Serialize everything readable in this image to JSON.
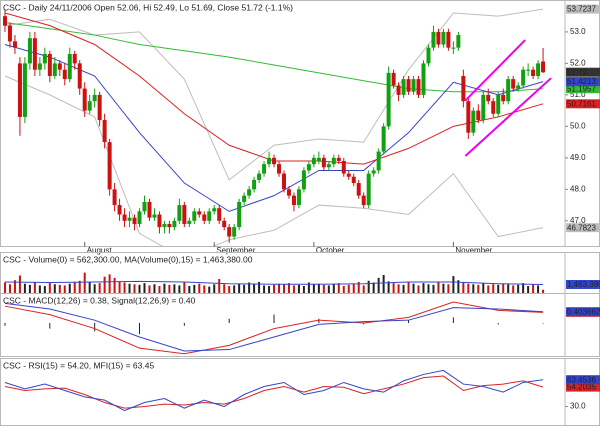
{
  "chart_data": [
    {
      "type": "candlestick",
      "title": "CSC - Daily 24/11/2006 Open 52.06, Hi 52.49, Lo 51.69, Close 51.72 (-1.1%)",
      "up_color": "#11a011",
      "down_color": "#cc1111",
      "ohlc": [
        [
          53.5,
          53.7,
          53.0,
          53.2
        ],
        [
          53.2,
          53.3,
          52.5,
          52.7
        ],
        [
          52.7,
          52.9,
          52.3,
          52.5
        ],
        [
          52.0,
          52.2,
          49.7,
          50.3
        ],
        [
          50.3,
          52.2,
          50.1,
          52.0
        ],
        [
          52.0,
          53.0,
          51.8,
          52.8
        ],
        [
          52.8,
          53.0,
          51.6,
          51.8
        ],
        [
          51.8,
          52.2,
          51.6,
          52.0
        ],
        [
          52.0,
          52.5,
          51.8,
          52.3
        ],
        [
          52.3,
          52.4,
          51.4,
          51.6
        ],
        [
          51.6,
          52.2,
          51.5,
          52.0
        ],
        [
          52.0,
          52.1,
          51.6,
          51.8
        ],
        [
          51.8,
          52.0,
          51.3,
          51.5
        ],
        [
          51.5,
          52.5,
          51.4,
          52.3
        ],
        [
          52.3,
          52.4,
          51.8,
          52.0
        ],
        [
          52.0,
          52.1,
          51.0,
          51.2
        ],
        [
          51.2,
          51.4,
          50.3,
          50.5
        ],
        [
          50.5,
          51.0,
          50.4,
          50.8
        ],
        [
          50.8,
          51.2,
          50.6,
          51.0
        ],
        [
          51.0,
          51.1,
          50.0,
          50.2
        ],
        [
          50.2,
          50.4,
          49.3,
          49.5
        ],
        [
          49.5,
          49.6,
          47.8,
          48.0
        ],
        [
          48.0,
          48.2,
          47.3,
          47.5
        ],
        [
          47.5,
          47.7,
          47.0,
          47.2
        ],
        [
          47.2,
          47.4,
          46.8,
          47.0
        ],
        [
          47.0,
          47.3,
          46.8,
          47.1
        ],
        [
          47.1,
          47.2,
          46.7,
          46.9
        ],
        [
          46.9,
          47.4,
          46.8,
          47.3
        ],
        [
          47.3,
          47.8,
          47.2,
          47.6
        ],
        [
          47.6,
          47.7,
          47.0,
          47.1
        ],
        [
          47.1,
          47.4,
          47.0,
          47.2
        ],
        [
          47.2,
          47.3,
          46.6,
          46.8
        ],
        [
          46.8,
          47.0,
          46.6,
          46.9
        ],
        [
          46.9,
          47.0,
          46.6,
          46.8
        ],
        [
          46.8,
          47.1,
          46.7,
          47.0
        ],
        [
          47.0,
          47.7,
          46.9,
          47.5
        ],
        [
          47.5,
          47.6,
          46.8,
          46.9
        ],
        [
          46.9,
          47.1,
          46.8,
          47.0
        ],
        [
          47.0,
          47.4,
          46.9,
          47.3
        ],
        [
          47.3,
          47.4,
          47.1,
          47.2
        ],
        [
          47.2,
          47.3,
          46.9,
          47.0
        ],
        [
          47.0,
          47.4,
          46.9,
          47.3
        ],
        [
          47.3,
          47.5,
          47.2,
          47.4
        ],
        [
          47.4,
          47.5,
          46.9,
          47.0
        ],
        [
          47.0,
          47.1,
          46.7,
          46.8
        ],
        [
          46.8,
          46.9,
          46.3,
          46.5
        ],
        [
          46.5,
          46.9,
          46.4,
          46.8
        ],
        [
          46.8,
          47.7,
          46.7,
          47.6
        ],
        [
          47.6,
          47.9,
          47.5,
          47.8
        ],
        [
          47.8,
          48.1,
          47.7,
          48.0
        ],
        [
          48.0,
          48.4,
          47.9,
          48.3
        ],
        [
          48.3,
          48.6,
          48.2,
          48.5
        ],
        [
          48.5,
          48.9,
          48.4,
          48.8
        ],
        [
          48.8,
          49.2,
          48.7,
          49.0
        ],
        [
          49.0,
          49.1,
          48.7,
          48.8
        ],
        [
          48.8,
          48.9,
          48.4,
          48.5
        ],
        [
          48.5,
          48.6,
          47.9,
          48.0
        ],
        [
          48.0,
          48.1,
          47.7,
          47.8
        ],
        [
          47.8,
          47.9,
          47.3,
          47.5
        ],
        [
          47.5,
          48.1,
          47.4,
          48.0
        ],
        [
          48.0,
          48.7,
          47.9,
          48.6
        ],
        [
          48.6,
          48.9,
          48.5,
          48.8
        ],
        [
          48.8,
          49.1,
          48.7,
          49.0
        ],
        [
          48.9,
          49.2,
          48.8,
          49.0
        ],
        [
          49.0,
          49.1,
          48.6,
          48.7
        ],
        [
          48.7,
          48.9,
          48.6,
          48.8
        ],
        [
          48.8,
          49.1,
          48.7,
          49.0
        ],
        [
          49.0,
          49.1,
          48.8,
          48.9
        ],
        [
          48.9,
          49.0,
          48.4,
          48.5
        ],
        [
          48.5,
          48.6,
          48.3,
          48.4
        ],
        [
          48.4,
          48.5,
          48.1,
          48.2
        ],
        [
          48.2,
          48.3,
          47.7,
          47.8
        ],
        [
          47.8,
          47.9,
          47.4,
          47.5
        ],
        [
          47.5,
          48.6,
          47.4,
          48.5
        ],
        [
          48.5,
          48.7,
          48.4,
          48.6
        ],
        [
          48.6,
          49.3,
          48.5,
          49.2
        ],
        [
          49.2,
          50.1,
          49.1,
          50.0
        ],
        [
          50.0,
          51.9,
          49.9,
          51.7
        ],
        [
          51.7,
          51.8,
          51.2,
          51.3
        ],
        [
          51.3,
          51.4,
          50.8,
          51.0
        ],
        [
          51.0,
          51.6,
          50.9,
          51.5
        ],
        [
          51.5,
          51.6,
          51.0,
          51.1
        ],
        [
          51.1,
          51.6,
          51.0,
          51.5
        ],
        [
          51.5,
          51.6,
          50.9,
          51.0
        ],
        [
          51.0,
          52.1,
          50.9,
          52.0
        ],
        [
          52.0,
          52.6,
          51.9,
          52.5
        ],
        [
          52.5,
          53.2,
          52.4,
          53.0
        ],
        [
          53.0,
          53.1,
          52.5,
          52.6
        ],
        [
          52.6,
          53.1,
          52.5,
          53.0
        ],
        [
          53.0,
          53.1,
          52.4,
          52.5
        ],
        [
          52.5,
          52.7,
          52.3,
          52.5
        ],
        [
          52.5,
          53.0,
          52.4,
          52.9
        ],
        [
          51.6,
          51.8,
          50.6,
          50.8
        ],
        [
          50.8,
          50.9,
          49.6,
          49.8
        ],
        [
          49.8,
          50.6,
          49.7,
          50.5
        ],
        [
          50.5,
          50.7,
          50.1,
          50.2
        ],
        [
          50.2,
          51.1,
          50.1,
          51.0
        ],
        [
          51.0,
          51.2,
          50.7,
          50.8
        ],
        [
          50.8,
          50.9,
          50.3,
          50.4
        ],
        [
          50.4,
          51.1,
          50.3,
          51.0
        ],
        [
          51.0,
          51.2,
          50.7,
          50.8
        ],
        [
          50.8,
          51.6,
          50.7,
          51.5
        ],
        [
          51.5,
          51.6,
          51.1,
          51.2
        ],
        [
          51.2,
          51.4,
          51.1,
          51.3
        ],
        [
          51.3,
          51.9,
          51.2,
          51.8
        ],
        [
          51.8,
          52.0,
          51.6,
          51.8
        ],
        [
          51.8,
          51.9,
          51.5,
          51.6
        ],
        [
          51.6,
          52.1,
          51.5,
          52.0
        ],
        [
          52.06,
          52.49,
          51.69,
          51.72
        ]
      ],
      "last_label": "51.72",
      "xlim": [
        -1,
        112
      ],
      "xticks": [
        {
          "value": 16,
          "label": "August"
        },
        {
          "value": 42,
          "label": "September"
        },
        {
          "value": 62,
          "label": "October"
        },
        {
          "value": 90,
          "label": "November"
        }
      ],
      "ylim": [
        46.2,
        53.95
      ],
      "yticks": [
        {
          "value": 53,
          "label": "53.0"
        },
        {
          "value": 52,
          "label": "52.0"
        },
        {
          "value": 51,
          "label": "51.0"
        },
        {
          "value": 50,
          "label": "50.0"
        },
        {
          "value": 49,
          "label": "49.0"
        },
        {
          "value": 48,
          "label": "48.0"
        },
        {
          "value": 47,
          "label": "47.0"
        }
      ],
      "overlay_x": [
        0,
        9,
        18,
        27,
        36,
        45,
        54,
        63,
        72,
        81,
        90,
        99,
        108
      ],
      "overlays": [
        {
          "color": "#bdbdbd",
          "label_text_color": "#222222",
          "values": [
            53.2,
            53.4,
            52.9,
            53.0,
            51.5,
            48.3,
            49.4,
            49.6,
            49.5,
            51.8,
            53.6,
            53.5,
            53.7237
          ],
          "end_label": "53.7237"
        },
        {
          "color": "#bdbdbd",
          "label_text_color": "#222222",
          "values": [
            51.6,
            51.0,
            50.3,
            46.6,
            45.8,
            46.4,
            46.7,
            47.5,
            47.4,
            47.2,
            48.5,
            46.5,
            46.7823
          ],
          "end_label": "46.7823"
        },
        {
          "color": "#33bb33",
          "label_text_color": "#ffffff",
          "values": [
            53.3,
            53.1,
            52.9,
            52.6,
            52.4,
            52.2,
            51.95,
            51.7,
            51.45,
            51.2,
            51.1,
            51.1,
            51.1957
          ],
          "end_label": "51.1957"
        },
        {
          "color": "#dd2222",
          "label_text_color": "#ffffff",
          "values": [
            53.6,
            53.2,
            52.6,
            51.6,
            50.4,
            49.4,
            48.9,
            48.9,
            48.8,
            49.3,
            50.0,
            50.3,
            50.7161
          ],
          "end_label": "50.7161"
        },
        {
          "color": "#3344cc",
          "label_text_color": "#ffffff",
          "values": [
            52.6,
            52.2,
            51.6,
            49.8,
            48.2,
            47.3,
            47.8,
            48.6,
            48.6,
            49.8,
            51.4,
            51.0,
            51.4213
          ],
          "end_label": "51.4213"
        }
      ],
      "trendlines": [
        {
          "color": "#ee00ee",
          "x": [
            92.4,
            104.4
          ],
          "values": [
            50.82,
            52.74
          ]
        },
        {
          "color": "#ee00ee",
          "x": [
            92.4,
            109.6
          ],
          "values": [
            49.06,
            51.53
          ]
        }
      ]
    },
    {
      "type": "volume",
      "title": "CSC - Volume(0) = 562,300.00, MA(Volume(0),15) = 1,463,380.00",
      "xlim": [
        -1,
        112
      ],
      "ylim": [
        0,
        6700000
      ],
      "values": [
        1800000,
        1500000,
        2200000,
        3000000,
        1600000,
        1400000,
        1900000,
        1300000,
        1200000,
        1700000,
        1500000,
        1400000,
        1300000,
        1600000,
        1900000,
        2100000,
        3500000,
        1800000,
        1500000,
        1700000,
        2800000,
        3200000,
        2600000,
        2000000,
        1800000,
        1600000,
        1500000,
        1400000,
        1700000,
        1300000,
        1500000,
        1200000,
        1600000,
        1400000,
        1500000,
        1300000,
        1800000,
        1200000,
        1400000,
        1600000,
        1300000,
        1100000,
        1500000,
        2400000,
        1500000,
        1200000,
        1300000,
        1600000,
        1400000,
        1800000,
        1500000,
        1900000,
        1300000,
        1200000,
        1400000,
        1600000,
        1500000,
        1700000,
        1300000,
        1400000,
        1200000,
        1800000,
        1500000,
        1600000,
        1400000,
        1300000,
        1500000,
        1700000,
        1200000,
        1400000,
        1600000,
        1900000,
        1300000,
        2100000,
        1800000,
        2600000,
        3100000,
        2000000,
        1700000,
        1500000,
        1400000,
        1800000,
        1600000,
        1300000,
        1700000,
        1500000,
        1400000,
        1900000,
        1600000,
        1500000,
        2900000,
        2200000,
        1800000,
        1600000,
        1500000,
        1400000,
        1700000,
        1300000,
        1500000,
        1400000,
        1600000,
        1500000,
        1300000,
        1400000,
        1700000,
        1200000,
        1500000,
        1300000,
        562300
      ],
      "ma": {
        "color": "#3344cc",
        "x": [
          0,
          9,
          18,
          27,
          36,
          45,
          54,
          63,
          72,
          81,
          90,
          99,
          108
        ],
        "values": [
          1900000,
          1800000,
          1900000,
          2000000,
          1900000,
          1600000,
          1500000,
          1500000,
          1600000,
          1900000,
          1900000,
          1600000,
          1463380
        ],
        "end_label": "1,463,380"
      }
    },
    {
      "type": "line",
      "title": "CSC - MACD(12,26) = 0.38, Signal(12,26,9) = 0.40",
      "xlim": [
        -1,
        112
      ],
      "ylim": [
        -1.18,
        1.0
      ],
      "x": [
        0,
        9,
        18,
        27,
        36,
        45,
        54,
        63,
        72,
        81,
        90,
        99,
        108
      ],
      "series": [
        {
          "color": "#dd2222",
          "values": [
            0.6,
            0.3,
            -0.2,
            -0.9,
            -1.1,
            -0.8,
            -0.2,
            0.1,
            0.0,
            0.2,
            0.75,
            0.45,
            0.38066
          ],
          "end_label": "0.380660"
        },
        {
          "color": "#3344cc",
          "values": [
            0.7,
            0.5,
            0.1,
            -0.5,
            -1.0,
            -0.95,
            -0.5,
            -0.05,
            0.05,
            0.1,
            0.55,
            0.5,
            0.403662
          ],
          "end_label": "0.403662"
        }
      ],
      "histogram": {
        "color": "#222222",
        "values": [
          -0.1,
          -0.2,
          -0.3,
          -0.4,
          -0.1,
          0.15,
          0.3,
          0.15,
          -0.05,
          0.1,
          0.2,
          -0.05,
          -0.023
        ]
      }
    },
    {
      "type": "line",
      "title": "CSC - RSI(15) = 54.20, MFI(15) = 63.45",
      "xlim": [
        -1,
        112
      ],
      "ylim": [
        7,
        88
      ],
      "yticks": [
        {
          "value": 30,
          "label": "30.0"
        }
      ],
      "x": [
        0,
        4,
        8,
        12,
        16,
        20,
        24,
        28,
        32,
        36,
        40,
        44,
        48,
        52,
        56,
        60,
        64,
        68,
        72,
        76,
        80,
        84,
        88,
        92,
        96,
        100,
        104,
        108
      ],
      "series": [
        {
          "color": "#dd2222",
          "values": [
            55,
            50,
            52,
            53,
            45,
            35,
            28,
            30,
            33,
            32,
            35,
            33,
            40,
            50,
            55,
            48,
            55,
            54,
            46,
            52,
            58,
            66,
            68,
            50,
            56,
            58,
            62,
            54.2035
          ],
          "end_label": "54.2035"
        },
        {
          "color": "#3344cc",
          "values": [
            60,
            52,
            58,
            50,
            42,
            38,
            25,
            35,
            40,
            28,
            38,
            30,
            45,
            55,
            60,
            45,
            50,
            60,
            52,
            48,
            62,
            70,
            75,
            58,
            55,
            48,
            60,
            63.4536
          ],
          "end_label": "63.4536"
        }
      ]
    }
  ]
}
